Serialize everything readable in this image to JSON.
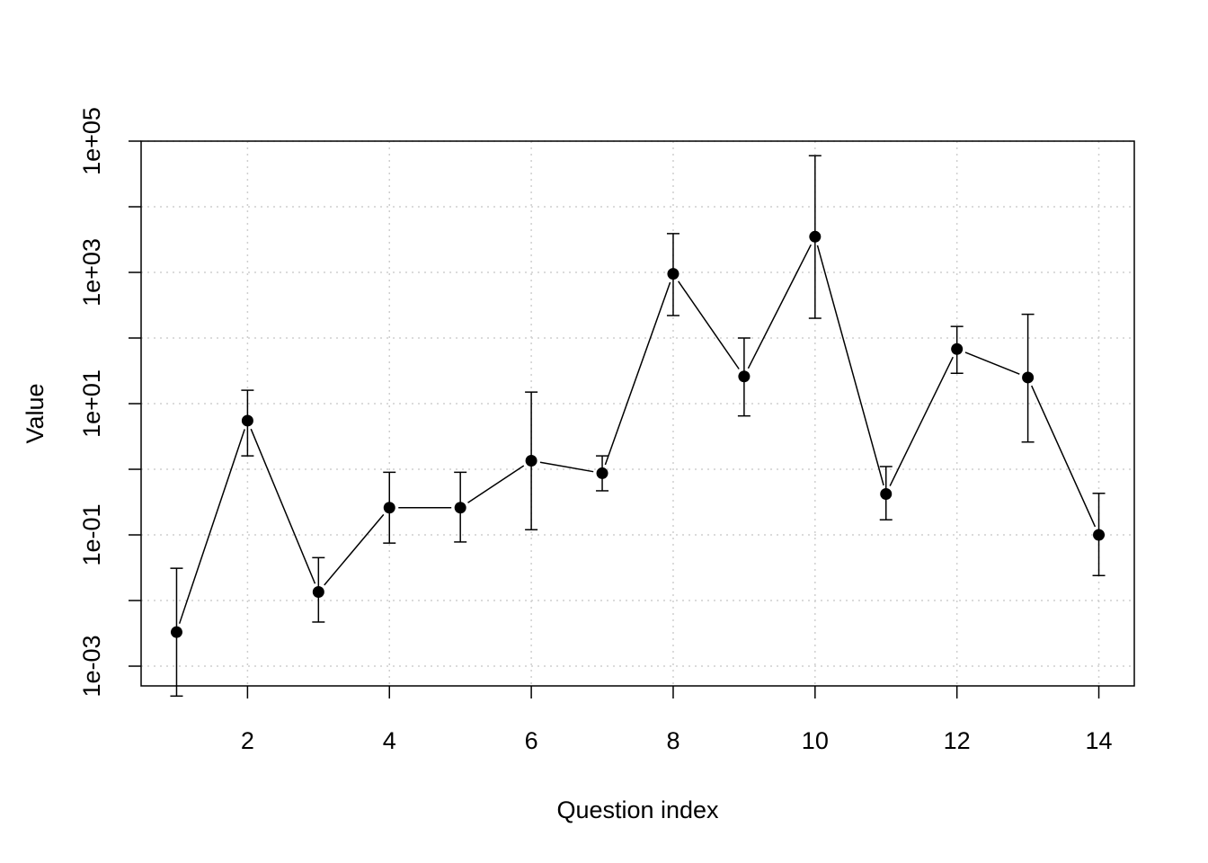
{
  "chart_data": {
    "type": "scatter",
    "title": "",
    "xlabel": "Question index",
    "ylabel": "Value",
    "y_scale": "log10",
    "grid": true,
    "legend": "none",
    "xlim": [
      0.5,
      14.5
    ],
    "ylim": [
      0.0005,
      100000
    ],
    "x_ticks": [
      2,
      4,
      6,
      8,
      10,
      12,
      14
    ],
    "x_tick_labels": [
      "2",
      "4",
      "6",
      "8",
      "10",
      "12",
      "14"
    ],
    "y_ticks": [
      0.001,
      0.1,
      10,
      1000,
      100000
    ],
    "y_tick_labels": [
      "1e-03",
      "1e-01",
      "1e+01",
      "1e+03",
      "1e+05"
    ],
    "y_minor_ticks": [
      0.01,
      1,
      100,
      10000
    ],
    "series": [
      {
        "x": [
          1,
          2,
          3,
          4,
          5,
          6,
          7,
          8,
          9,
          10,
          11,
          12,
          13,
          14
        ],
        "y": [
          0.0033,
          5.5,
          0.0135,
          0.26,
          0.26,
          1.35,
          0.87,
          950,
          26,
          3500,
          0.42,
          68,
          25,
          0.1
        ],
        "lower": [
          0.00035,
          1.6,
          0.0047,
          0.075,
          0.078,
          0.12,
          0.47,
          220,
          6.5,
          200,
          0.17,
          29,
          2.6,
          0.024
        ],
        "upper": [
          0.031,
          16,
          0.045,
          0.9,
          0.9,
          15,
          1.6,
          3900,
          100,
          60000,
          1.1,
          150,
          230,
          0.43
        ]
      }
    ]
  }
}
